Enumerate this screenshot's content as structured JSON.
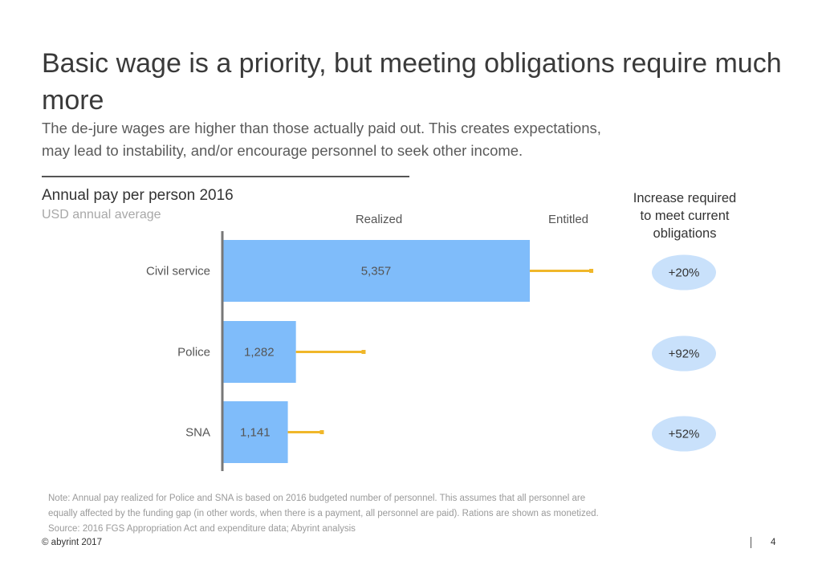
{
  "slide": {
    "title": "Basic wage is a priority, but meeting obligations require much more",
    "subtitle_lines": [
      "The de-jure wages are higher than those actually paid out. This creates expectations,",
      "may lead to instability, and/or encourage personnel to seek other income."
    ],
    "chart_title": "Annual pay per person 2016",
    "chart_subtitle": "USD annual average",
    "right_header_lines": [
      "Increase required",
      "to meet current",
      "obligations"
    ],
    "footnote_lines": [
      "Note: Annual pay realized for Police and SNA is based on 2016 budgeted number of personnel. This assumes that all personnel are",
      "equally affected by the funding gap (in other words, when there is a payment, all personnel are paid). Rations are shown as monetized.",
      "Source: 2016 FGS Appropriation Act and expenditure data; Abyrint analysis"
    ],
    "copyright": "© abyrint 2017",
    "page_number": "4"
  },
  "chart_data": {
    "type": "bar",
    "orientation": "horizontal",
    "categories": [
      "Civil service",
      "Police",
      "SNA"
    ],
    "series": [
      {
        "name": "Realized",
        "values": [
          5357,
          1282,
          1141
        ],
        "color": "#7fbcfa"
      },
      {
        "name": "Entitled",
        "values": [
          6428,
          2461,
          1734
        ],
        "color": "#f0b72a"
      }
    ],
    "data_labels": [
      "5,357",
      "1,282",
      "1,141"
    ],
    "increase_labels": [
      "+20%",
      "+92%",
      "+52%"
    ],
    "increase_color": "#c9e1fb",
    "column_headers": {
      "realized": "Realized",
      "entitled": "Entitled"
    },
    "xlim": [
      0,
      7000
    ],
    "axis_color": "#777777"
  }
}
